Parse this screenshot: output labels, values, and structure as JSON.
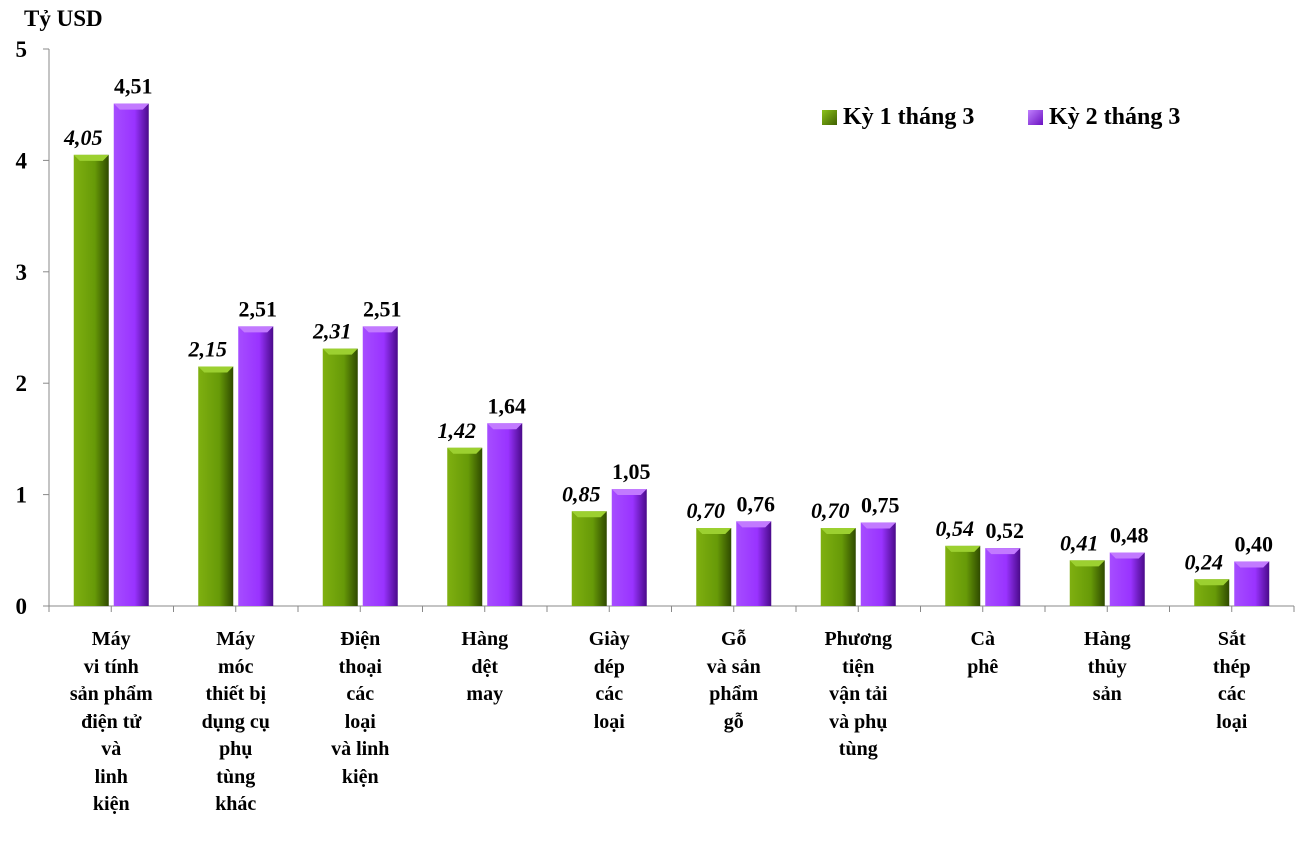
{
  "chart_data": {
    "type": "bar",
    "ylabel": "Tỷ USD",
    "ylim": [
      0,
      5
    ],
    "yticks": [
      "0",
      "1",
      "2",
      "3",
      "4",
      "5"
    ],
    "grid": false,
    "legend_position": "top-right",
    "categories": [
      [
        "Máy",
        "vi tính",
        "sản phẩm",
        "điện tử",
        "và",
        "linh",
        "kiện"
      ],
      [
        "Máy",
        "móc",
        "thiết bị",
        "dụng cụ",
        "phụ",
        "tùng",
        "khác"
      ],
      [
        "Điện",
        "thoại",
        "các",
        "loại",
        "và linh",
        "kiện"
      ],
      [
        "Hàng",
        "dệt",
        "may"
      ],
      [
        "Giày",
        "dép",
        "các",
        "loại"
      ],
      [
        "Gỗ",
        "và sản",
        "phẩm",
        "gỗ"
      ],
      [
        "Phương",
        "tiện",
        "vận tải",
        "và phụ",
        "tùng"
      ],
      [
        "Cà",
        "phê"
      ],
      [
        "Hàng",
        "thủy",
        "sản"
      ],
      [
        "Sắt",
        "thép",
        "các",
        "loại"
      ]
    ],
    "series": [
      {
        "name": "Kỳ 1 tháng 3",
        "color": "#6a9a0a",
        "values": [
          4.05,
          2.15,
          2.31,
          1.42,
          0.85,
          0.7,
          0.7,
          0.54,
          0.41,
          0.24
        ],
        "labels": [
          "4,05",
          "2,15",
          "2,31",
          "1,42",
          "0,85",
          "0,70",
          "0,70",
          "0,54",
          "0,41",
          "0,24"
        ]
      },
      {
        "name": "Kỳ 2 tháng 3",
        "color": "#9933ff",
        "values": [
          4.51,
          2.51,
          2.51,
          1.64,
          1.05,
          0.76,
          0.75,
          0.52,
          0.48,
          0.4
        ],
        "labels": [
          "4,51",
          "2,51",
          "2,51",
          "1,64",
          "1,05",
          "0,76",
          "0,75",
          "0,52",
          "0,48",
          "0,40"
        ]
      }
    ]
  }
}
